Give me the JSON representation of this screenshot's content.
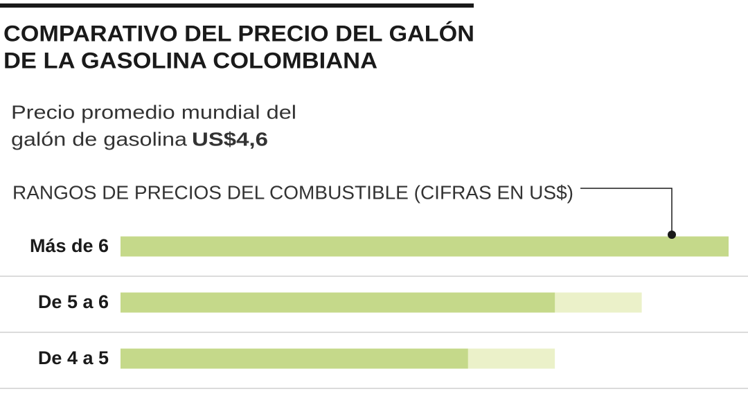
{
  "chart_data": {
    "type": "range_bar",
    "title": [
      "COMPARATIVO DEL PRECIO DEL GALÓN",
      "DE LA GASOLINA COLOMBIANA"
    ],
    "subtitle": [
      "Precio promedio mundial del",
      "galón de gasolina"
    ],
    "subtitle_value": "US$4,6",
    "axis_label": "RANGOS DE PRECIOS DEL COMBUSTIBLE (CIFRAS EN US$)",
    "categories": [
      "Más de 6",
      "De 5 a 6",
      "De 4 a 5"
    ],
    "values": [
      7,
      5,
      4
    ],
    "upper": [
      null,
      6,
      5
    ],
    "color": "#c5d98a",
    "upper_color": "#ebf1c9",
    "xlim": [
      0,
      7
    ]
  }
}
